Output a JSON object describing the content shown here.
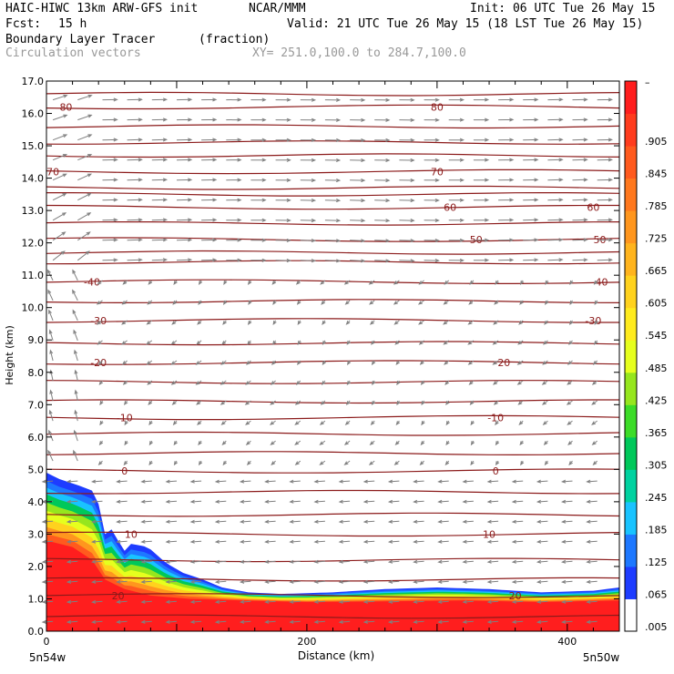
{
  "header": {
    "model": "HAIC-HIWC 13km ARW-GFS init",
    "org": "NCAR/MMM",
    "init": "Init: 06 UTC Tue 26 May 15",
    "fcst_label": "Fcst:",
    "fcst_value": "15 h",
    "valid": "Valid: 21 UTC Tue 26 May 15 (18 LST Tue 26 May 15)",
    "field": "Boundary Layer Tracer",
    "units": "(fraction)",
    "vectors": "Circulation vectors",
    "xy": "XY= 251.0,100.0 to 284.7,100.0"
  },
  "chart_data": {
    "type": "area",
    "title": "Boundary Layer Tracer",
    "xlabel": "Distance (km)",
    "ylabel": "Height (km)",
    "xlim": [
      0,
      440
    ],
    "ylim": [
      0,
      17
    ],
    "x_ticks": [
      0,
      200,
      400
    ],
    "y_ticks": [
      "0.0",
      "1.0",
      "2.0",
      "3.0",
      "4.0",
      "5.0",
      "6.0",
      "7.0",
      "8.0",
      "9.0",
      "10.0",
      "11.0",
      "12.0",
      "13.0",
      "14.0",
      "15.0",
      "16.0",
      "17.0"
    ],
    "x_end_labels": {
      "left": "5n54w",
      "right": "5n50w"
    },
    "tracer_outer_top": [
      {
        "x": 0,
        "y": 4.9
      },
      {
        "x": 10,
        "y": 4.7
      },
      {
        "x": 25,
        "y": 4.5
      },
      {
        "x": 38,
        "y": 4.3
      },
      {
        "x": 45,
        "y": 3.0
      },
      {
        "x": 52,
        "y": 3.2
      },
      {
        "x": 58,
        "y": 2.4
      },
      {
        "x": 65,
        "y": 2.7
      },
      {
        "x": 78,
        "y": 2.6
      },
      {
        "x": 92,
        "y": 2.1
      },
      {
        "x": 105,
        "y": 1.8
      },
      {
        "x": 120,
        "y": 1.6
      },
      {
        "x": 135,
        "y": 1.35
      },
      {
        "x": 155,
        "y": 1.2
      },
      {
        "x": 180,
        "y": 1.15
      },
      {
        "x": 220,
        "y": 1.2
      },
      {
        "x": 260,
        "y": 1.3
      },
      {
        "x": 300,
        "y": 1.35
      },
      {
        "x": 340,
        "y": 1.3
      },
      {
        "x": 380,
        "y": 1.2
      },
      {
        "x": 420,
        "y": 1.25
      },
      {
        "x": 440,
        "y": 1.35
      }
    ],
    "tracer_red_top": [
      {
        "x": 0,
        "y": 2.8
      },
      {
        "x": 20,
        "y": 2.6
      },
      {
        "x": 35,
        "y": 2.2
      },
      {
        "x": 45,
        "y": 1.6
      },
      {
        "x": 60,
        "y": 1.3
      },
      {
        "x": 80,
        "y": 1.1
      },
      {
        "x": 110,
        "y": 1.0
      },
      {
        "x": 150,
        "y": 0.95
      },
      {
        "x": 200,
        "y": 0.9
      },
      {
        "x": 260,
        "y": 0.92
      },
      {
        "x": 320,
        "y": 0.95
      },
      {
        "x": 380,
        "y": 0.9
      },
      {
        "x": 440,
        "y": 0.95
      }
    ],
    "temperature_contours": [
      {
        "label": "20",
        "y": 1.1
      },
      {
        "label": "10",
        "y": 3.0
      },
      {
        "label": "0",
        "y": 4.95
      },
      {
        "label": "-10",
        "y": 6.6
      },
      {
        "label": "-20",
        "y": 8.3
      },
      {
        "label": "-30",
        "y": 9.6
      },
      {
        "label": "-40",
        "y": 10.8
      },
      {
        "label": "50",
        "y": 12.1
      },
      {
        "label": "60",
        "y": 13.1
      },
      {
        "label": "70",
        "y": 14.2
      },
      {
        "label": "80",
        "y": 16.2
      }
    ],
    "colorbar": {
      "labels": [
        ".005",
        ".065",
        ".125",
        ".185",
        ".245",
        ".305",
        ".365",
        ".425",
        ".485",
        ".545",
        ".605",
        ".665",
        ".725",
        ".785",
        ".845",
        ".905"
      ],
      "top_label": "–",
      "colors": [
        "#ffffff",
        "#1e3cff",
        "#1e78ff",
        "#19c3ff",
        "#00d2a0",
        "#00c85a",
        "#3cdc28",
        "#96e61e",
        "#e6ff1e",
        "#ffeb1e",
        "#ffd21e",
        "#ffb41e",
        "#ff961e",
        "#ff781e",
        "#ff5a1e",
        "#ff3c1e",
        "#ff1e1e"
      ]
    }
  }
}
